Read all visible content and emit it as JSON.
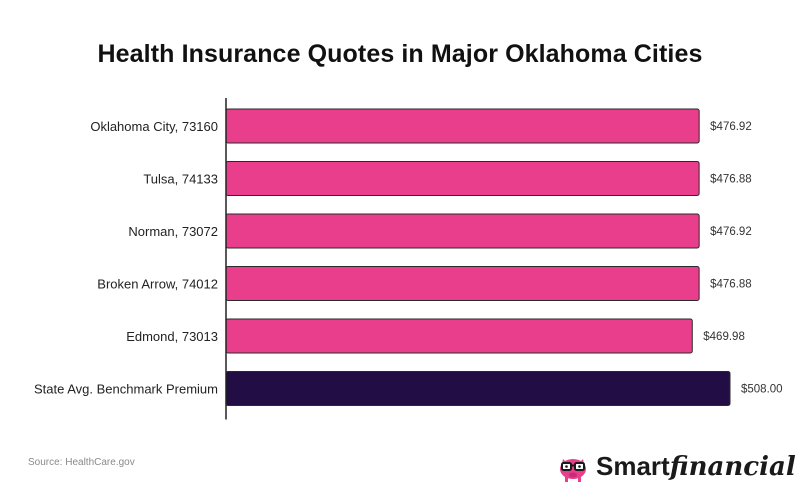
{
  "chart_data": {
    "type": "bar",
    "orientation": "horizontal",
    "title": "Health Insurance Quotes in Major Oklahoma Cities",
    "categories": [
      "Oklahoma City, 73160",
      "Tulsa, 74133",
      "Norman, 73072",
      "Broken Arrow, 74012",
      "Edmond, 73013",
      "State Avg. Benchmark Premium"
    ],
    "values": [
      476.92,
      476.88,
      476.92,
      476.88,
      469.98,
      508.0
    ],
    "value_labels": [
      "$476.92",
      "$476.88",
      "$476.92",
      "$476.88",
      "$469.98",
      "$508.00"
    ],
    "bar_colors": [
      "#e83e8c",
      "#e83e8c",
      "#e83e8c",
      "#e83e8c",
      "#e83e8c",
      "#220e44"
    ],
    "xlim": [
      0,
      508
    ],
    "grid": false,
    "xlabel": "",
    "ylabel": ""
  },
  "footer": {
    "source": "Source: HealthCare.gov",
    "brand_part1": "Smart",
    "brand_part2": "financial"
  },
  "colors": {
    "accent": "#e83e8c",
    "benchmark": "#220e44",
    "text": "#111111"
  },
  "icons": {
    "brand_logo": "piggy-bank-with-glasses-icon"
  }
}
